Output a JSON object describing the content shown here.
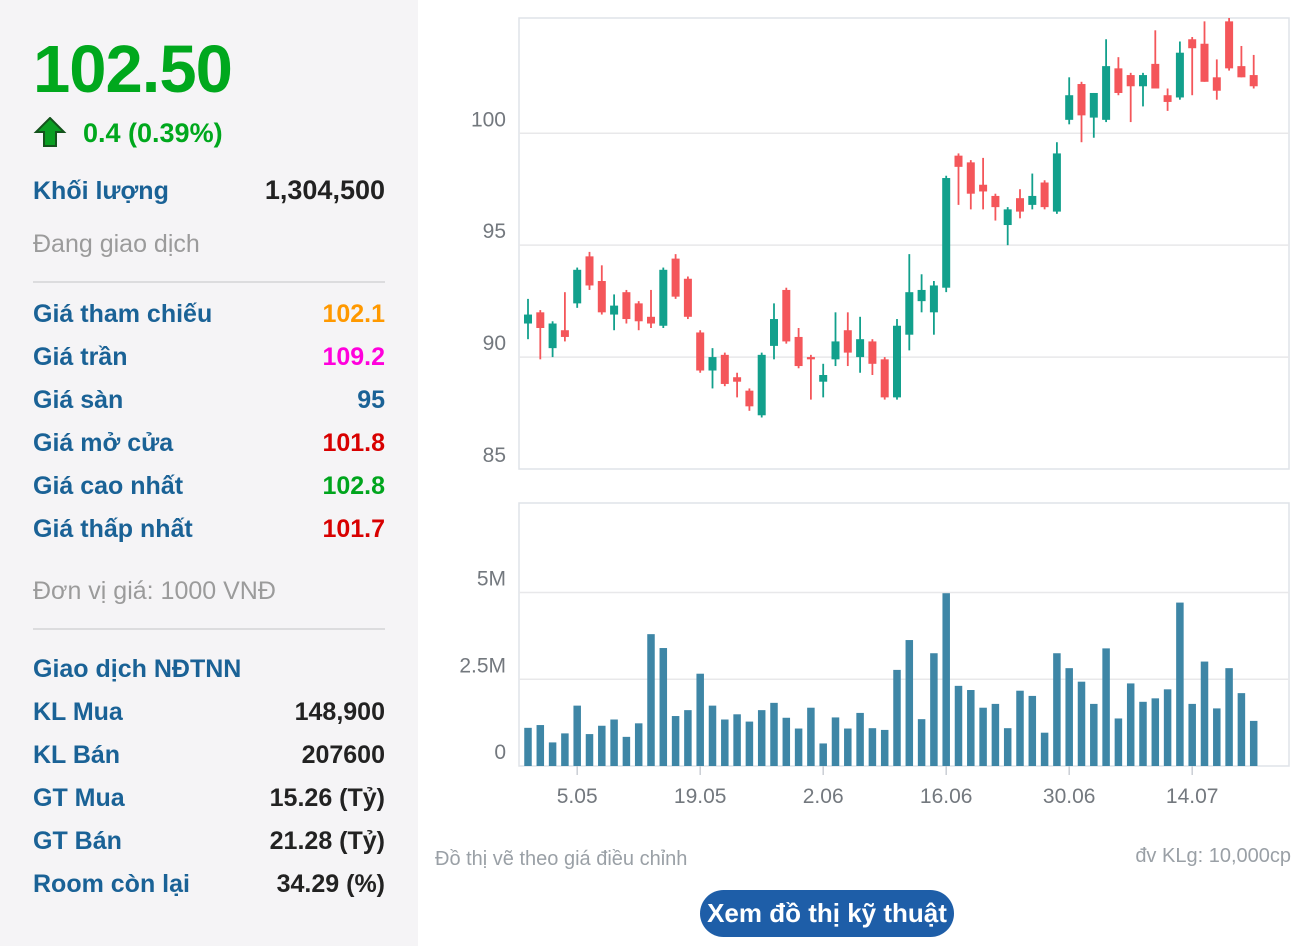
{
  "quote": {
    "last_price": "102.50",
    "change_text": "0.4 (0.39%)",
    "volume_label": "Khối lượng",
    "volume_value": "1,304,500",
    "session_status": "Đang giao dịch",
    "price_rows": [
      {
        "label": "Giá tham chiếu",
        "value": "102.1",
        "color": "#ff9900"
      },
      {
        "label": "Giá trần",
        "value": "109.2",
        "color": "#ff00dc"
      },
      {
        "label": "Giá sàn",
        "value": "95",
        "color": "#1a6296"
      },
      {
        "label": "Giá mở cửa",
        "value": "101.8",
        "color": "#d80000"
      },
      {
        "label": "Giá cao nhất",
        "value": "102.8",
        "color": "#00a51d"
      },
      {
        "label": "Giá thấp nhất",
        "value": "101.7",
        "color": "#d80000"
      }
    ],
    "price_unit_note": "Đơn vị giá: 1000 VNĐ",
    "foreign_section": {
      "title": "Giao dịch NĐTNN",
      "rows": [
        {
          "label": "KL Mua",
          "value": "148,900"
        },
        {
          "label": "KL Bán",
          "value": "207600"
        },
        {
          "label": "GT Mua",
          "value": "15.26 (Tỷ)"
        },
        {
          "label": "GT Bán",
          "value": "21.28 (Tỷ)"
        },
        {
          "label": "Room còn lại",
          "value": "34.29 (%)"
        }
      ]
    }
  },
  "chart_footer": {
    "left_note": "Đồ thị vẽ theo giá điều chỉnh",
    "right_note": "đv KLg: 10,000cp",
    "button_label": "Xem đồ thị kỹ thuật"
  },
  "colors": {
    "up_candle": "#12a08c",
    "down_candle": "#f4565a",
    "volume_bar": "#3e86a6",
    "grid_line": "#e8e8ea",
    "plot_border": "#dfe3e8",
    "axis_text": "#73787e",
    "tick_mark": "#c9ced4",
    "price_up_text": "#00a81d",
    "label_blue": "#1a6296",
    "button_bg": "#1e5ea8"
  },
  "chart_data": {
    "type": "candlestick+volume",
    "title": "",
    "x_tick_labels": [
      "5.05",
      "19.05",
      "2.06",
      "16.06",
      "30.06",
      "14.07"
    ],
    "x_tick_indices": [
      4,
      14,
      24,
      34,
      44,
      54
    ],
    "price_axis": {
      "tick_values": [
        100,
        95,
        90,
        85
      ],
      "tick_labels": [
        "100",
        "95",
        "90",
        "85"
      ],
      "ylim": [
        85,
        105.15
      ]
    },
    "volume_axis": {
      "tick_values": [
        5,
        2.5,
        0
      ],
      "tick_labels": [
        "5M",
        "2.5M",
        "0"
      ],
      "ylim": [
        0,
        7.58
      ]
    },
    "candles_ohlc": [
      [
        91.5,
        92.6,
        90.8,
        91.9
      ],
      [
        92.0,
        92.1,
        89.9,
        91.3
      ],
      [
        90.4,
        91.6,
        90.0,
        91.5
      ],
      [
        91.2,
        92.9,
        90.7,
        90.9
      ],
      [
        92.4,
        94.0,
        92.2,
        93.9
      ],
      [
        94.5,
        94.7,
        93.0,
        93.2
      ],
      [
        93.4,
        94.1,
        91.9,
        92.0
      ],
      [
        91.9,
        92.8,
        91.2,
        92.3
      ],
      [
        92.9,
        93.0,
        91.5,
        91.7
      ],
      [
        92.4,
        92.5,
        91.2,
        91.6
      ],
      [
        91.8,
        93.0,
        91.3,
        91.5
      ],
      [
        91.4,
        94.0,
        91.3,
        93.9
      ],
      [
        94.4,
        94.6,
        92.6,
        92.7
      ],
      [
        93.5,
        93.6,
        91.7,
        91.8
      ],
      [
        91.1,
        91.2,
        89.3,
        89.4
      ],
      [
        89.4,
        90.4,
        88.6,
        90.0
      ],
      [
        90.1,
        90.2,
        88.7,
        88.8
      ],
      [
        89.1,
        89.3,
        88.2,
        88.9
      ],
      [
        88.5,
        88.6,
        87.6,
        87.8
      ],
      [
        87.4,
        90.2,
        87.3,
        90.1
      ],
      [
        90.5,
        92.4,
        89.9,
        91.7
      ],
      [
        93.0,
        93.1,
        90.6,
        90.7
      ],
      [
        90.9,
        91.3,
        89.5,
        89.6
      ],
      [
        90.0,
        90.1,
        88.1,
        89.9
      ],
      [
        88.9,
        89.7,
        88.2,
        89.2
      ],
      [
        89.9,
        92.0,
        89.6,
        90.7
      ],
      [
        91.2,
        92.0,
        89.6,
        90.2
      ],
      [
        90.0,
        91.8,
        89.3,
        90.8
      ],
      [
        90.7,
        90.8,
        89.2,
        89.7
      ],
      [
        89.9,
        90.0,
        88.1,
        88.2
      ],
      [
        88.2,
        91.7,
        88.1,
        91.4
      ],
      [
        91.0,
        94.6,
        90.3,
        92.9
      ],
      [
        92.5,
        93.7,
        92.0,
        93.0
      ],
      [
        92.0,
        93.4,
        91.0,
        93.2
      ],
      [
        93.1,
        98.1,
        92.9,
        98.0
      ],
      [
        99.0,
        99.1,
        96.8,
        98.5
      ],
      [
        98.7,
        98.8,
        96.6,
        97.3
      ],
      [
        97.7,
        98.9,
        96.6,
        97.4
      ],
      [
        97.2,
        97.3,
        96.1,
        96.7
      ],
      [
        95.9,
        96.7,
        95.0,
        96.6
      ],
      [
        97.1,
        97.5,
        96.2,
        96.5
      ],
      [
        96.8,
        98.2,
        96.6,
        97.2
      ],
      [
        97.8,
        97.9,
        96.6,
        96.7
      ],
      [
        96.5,
        99.6,
        96.4,
        99.1
      ],
      [
        100.6,
        102.5,
        100.4,
        101.7
      ],
      [
        102.2,
        102.3,
        99.6,
        100.8
      ],
      [
        100.7,
        101.8,
        99.8,
        101.8
      ],
      [
        100.6,
        104.2,
        100.5,
        103.0
      ],
      [
        102.9,
        103.4,
        101.7,
        101.8
      ],
      [
        102.6,
        102.7,
        100.5,
        102.1
      ],
      [
        102.1,
        102.7,
        101.2,
        102.6
      ],
      [
        103.1,
        104.6,
        102.0,
        102.0
      ],
      [
        101.7,
        102.0,
        101.0,
        101.4
      ],
      [
        101.6,
        104.1,
        101.5,
        103.6
      ],
      [
        104.2,
        104.3,
        101.7,
        103.8
      ],
      [
        104.0,
        105.0,
        102.3,
        102.3
      ],
      [
        102.5,
        103.3,
        101.5,
        101.9
      ],
      [
        105.0,
        105.2,
        102.8,
        102.9
      ],
      [
        103.0,
        103.9,
        102.5,
        102.5
      ],
      [
        102.6,
        103.5,
        102.0,
        102.1
      ]
    ],
    "volumes_m": [
      1.1,
      1.18,
      0.68,
      0.94,
      1.74,
      0.92,
      1.16,
      1.34,
      0.84,
      1.23,
      3.8,
      3.4,
      1.44,
      1.61,
      2.66,
      1.74,
      1.34,
      1.49,
      1.28,
      1.61,
      1.82,
      1.39,
      1.08,
      1.68,
      0.65,
      1.4,
      1.08,
      1.53,
      1.09,
      1.04,
      2.77,
      3.63,
      1.35,
      3.25,
      4.98,
      2.31,
      2.19,
      1.68,
      1.79,
      1.09,
      2.17,
      2.02,
      0.96,
      3.25,
      2.82,
      2.43,
      1.79,
      3.39,
      1.37,
      2.38,
      1.85,
      1.95,
      2.21,
      4.71,
      1.79,
      3.01,
      1.66,
      2.82,
      2.1,
      1.3
    ]
  }
}
